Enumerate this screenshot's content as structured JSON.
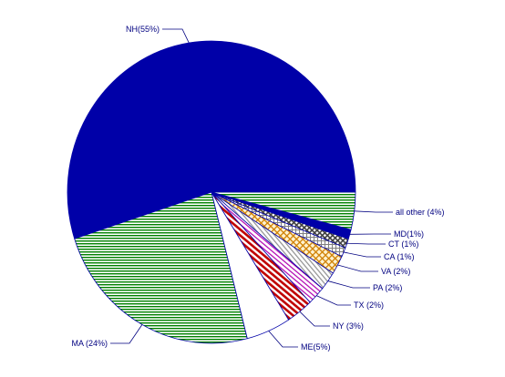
{
  "chart_data": {
    "type": "pie",
    "title": "",
    "start_angle_deg": 0,
    "direction": "counterclockwise",
    "slices": [
      {
        "label": "NH(55%)",
        "value": 55,
        "color": "#0000a8",
        "pattern": "solid"
      },
      {
        "label": "MA (24%)",
        "value": 24,
        "color": "#008000",
        "pattern": "hlines"
      },
      {
        "label": "ME(5%)",
        "value": 5,
        "color": "#ffffff",
        "pattern": "solid"
      },
      {
        "label": "NY (3%)",
        "value": 3,
        "color": "#c00000",
        "pattern": "diag"
      },
      {
        "label": "TX (2%)",
        "value": 2,
        "color": "#b000b0",
        "pattern": "diag"
      },
      {
        "label": "PA (2%)",
        "value": 2,
        "color": "#909090",
        "pattern": "diag"
      },
      {
        "label": "VA (2%)",
        "value": 2,
        "color": "#d08000",
        "pattern": "cross"
      },
      {
        "label": "CA (1%)",
        "value": 1,
        "color": "#808080",
        "pattern": "grid"
      },
      {
        "label": "CT (1%)",
        "value": 1,
        "color": "#404040",
        "pattern": "cross"
      },
      {
        "label": "MD(1%)",
        "value": 1,
        "color": "#0000a8",
        "pattern": "solid"
      },
      {
        "label": "all other (4%)",
        "value": 4,
        "color": "#008000",
        "pattern": "hlines"
      }
    ]
  }
}
